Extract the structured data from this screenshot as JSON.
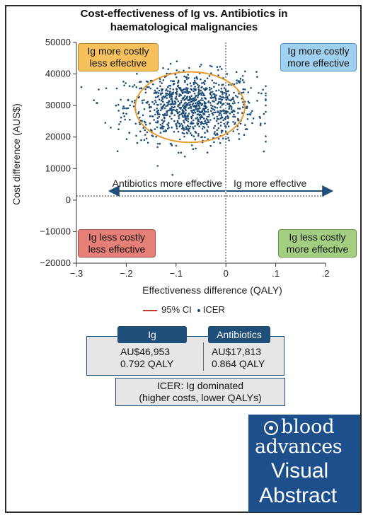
{
  "title": {
    "line1": "Cost-effectiveness of Ig vs. Antibiotics in",
    "line2": "haematological malignancies"
  },
  "quadrants": {
    "top_left": [
      "Ig more costly",
      "less effective"
    ],
    "top_right": [
      "Ig more costly",
      "more effective"
    ],
    "bottom_left": [
      "Ig less costly",
      "less effective"
    ],
    "bottom_right": [
      "Ig less costly",
      "more effective"
    ],
    "colors": {
      "top_left": "#f6c15c",
      "top_right": "#9fd0ef",
      "bottom_left": "#e67f77",
      "bottom_right": "#a4cf83"
    }
  },
  "arrows": {
    "left_label": "Antibiotics more effective",
    "right_label": "Ig more effective"
  },
  "legend": {
    "ci_label": "95% CI",
    "icer_label": "ICER"
  },
  "summary": {
    "ig": {
      "label": "Ig",
      "cost": "AU$46,953",
      "qaly": "0.792 QALY"
    },
    "antibiotics": {
      "label": "Antibiotics",
      "cost": "AU$17,813",
      "qaly": "0.864 QALY"
    },
    "icer": {
      "line1": "ICER: Ig dominated",
      "line2": "(higher costs, lower QALYs)"
    }
  },
  "logo": {
    "line1": "blood",
    "line2": "advances",
    "line3": "Visual",
    "line4": "Abstract"
  },
  "chart_data": {
    "type": "scatter",
    "xlabel": "Effectiveness difference (QALY)",
    "ylabel": "Cost difference (AUS$)",
    "xlim": [
      -0.3,
      0.2
    ],
    "ylim": [
      -20000,
      50000
    ],
    "xticks": [
      -0.3,
      -0.2,
      -0.1,
      0,
      0.1,
      0.2
    ],
    "xtick_labels": [
      "−.3",
      "−.2",
      "−.1",
      "0",
      ".1",
      ".2"
    ],
    "yticks": [
      -20000,
      -10000,
      0,
      10000,
      20000,
      30000,
      40000,
      50000
    ],
    "ytick_labels": [
      "−20000",
      "−10000",
      "0",
      "10000",
      "20000",
      "30000",
      "40000",
      "50000"
    ],
    "series": [
      {
        "name": "ICER",
        "center": [
          -0.07,
          29500
        ],
        "sd": [
          0.065,
          5500
        ],
        "n": 1000,
        "x_range_observed": [
          -0.29,
          0.08
        ],
        "y_range_observed": [
          8000,
          44000
        ],
        "color": "#1f4e79"
      }
    ],
    "ellipse": {
      "name": "95% CI",
      "center": [
        -0.072,
        29500
      ],
      "radius_x": 0.11,
      "radius_y": 11200,
      "color": "#e69a2e"
    },
    "grid": false,
    "legend_position": "bottom"
  }
}
